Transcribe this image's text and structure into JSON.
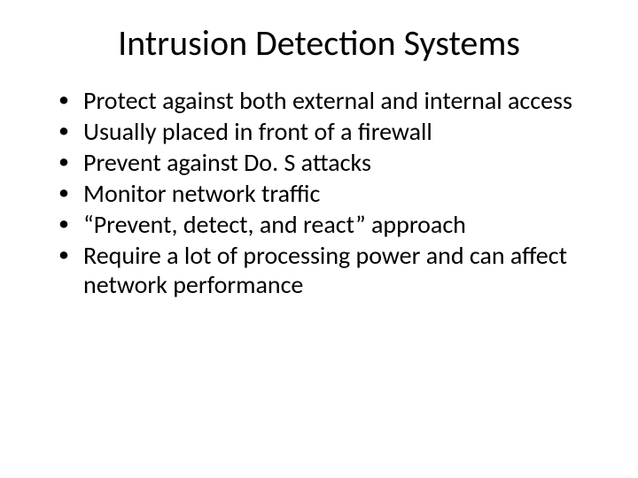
{
  "slide": {
    "title": "Intrusion Detection Systems",
    "title_fontsize": 40,
    "title_color": "#000000",
    "background_color": "#ffffff",
    "bullet_fontsize": 28,
    "bullet_color": "#000000",
    "bullets": [
      "Protect against both external and internal access",
      "Usually placed in front of a firewall",
      "Prevent against Do. S attacks",
      "Monitor network traffic",
      "“Prevent, detect, and react” approach",
      "Require a lot of processing power and can affect network performance"
    ]
  }
}
